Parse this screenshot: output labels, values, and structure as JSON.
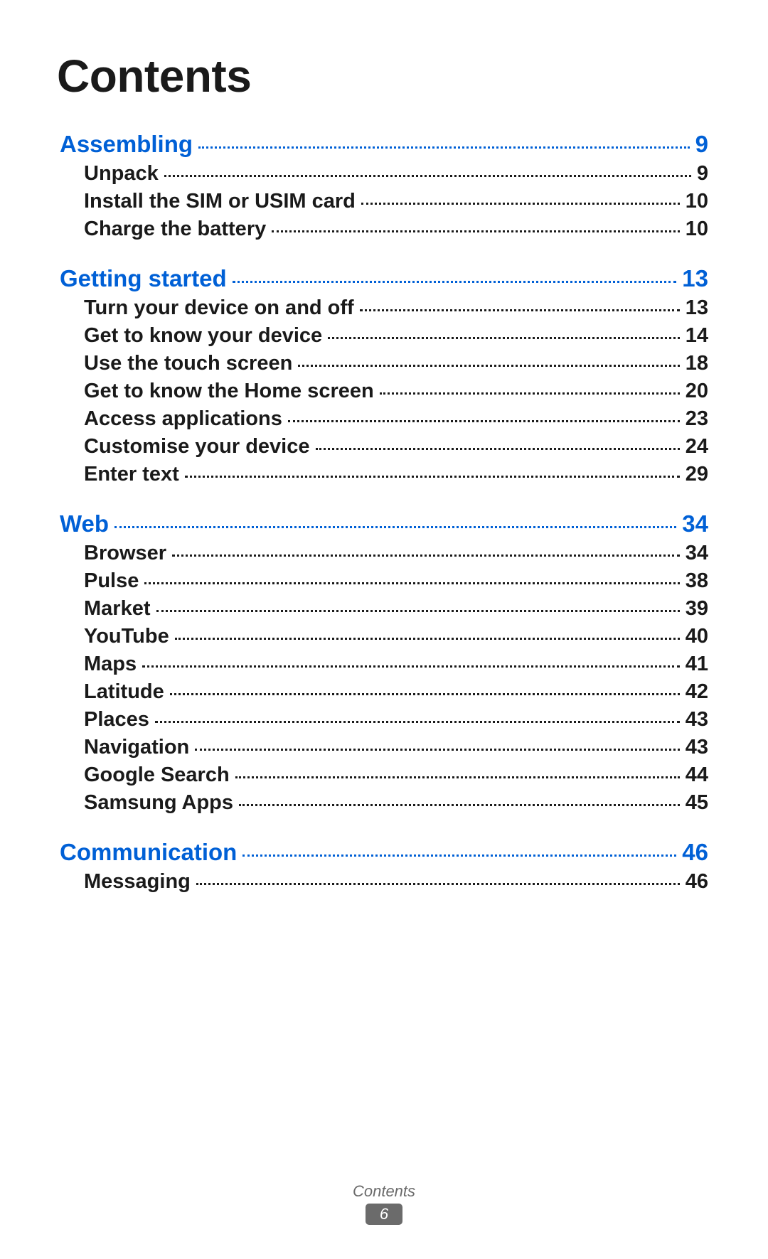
{
  "colors": {
    "section": "#0060d6",
    "item": "#1a1a1a",
    "footer_text": "#6a6a6a",
    "badge_bg": "#6b6b6b",
    "badge_text": "#ffffff",
    "background": "#ffffff"
  },
  "typography": {
    "title_fontsize": 64,
    "section_fontsize": 33,
    "item_fontsize": 29,
    "footer_fontsize": 22,
    "font_family": "Myriad Pro / Segoe UI / Helvetica Neue"
  },
  "title": "Contents",
  "footer": {
    "label": "Contents",
    "page_number": "6"
  },
  "sections": [
    {
      "label": "Assembling",
      "page": "9",
      "items": [
        {
          "label": "Unpack",
          "page": "9"
        },
        {
          "label": "Install the SIM or USIM card",
          "page": "10"
        },
        {
          "label": "Charge the battery",
          "page": "10"
        }
      ]
    },
    {
      "label": "Getting started",
      "page": "13",
      "items": [
        {
          "label": "Turn your device on and off",
          "page": "13"
        },
        {
          "label": "Get to know your device",
          "page": "14"
        },
        {
          "label": "Use the touch screen",
          "page": "18"
        },
        {
          "label": "Get to know the Home screen",
          "page": "20"
        },
        {
          "label": "Access applications",
          "page": "23"
        },
        {
          "label": "Customise your device",
          "page": "24"
        },
        {
          "label": "Enter text",
          "page": "29"
        }
      ]
    },
    {
      "label": "Web",
      "page": "34",
      "items": [
        {
          "label": "Browser",
          "page": "34"
        },
        {
          "label": "Pulse",
          "page": "38"
        },
        {
          "label": "Market",
          "page": "39"
        },
        {
          "label": "YouTube",
          "page": "40"
        },
        {
          "label": "Maps",
          "page": "41"
        },
        {
          "label": "Latitude",
          "page": "42"
        },
        {
          "label": "Places",
          "page": "43"
        },
        {
          "label": "Navigation",
          "page": "43"
        },
        {
          "label": "Google Search",
          "page": "44"
        },
        {
          "label": "Samsung Apps",
          "page": "45"
        }
      ]
    },
    {
      "label": "Communication",
      "page": "46",
      "items": [
        {
          "label": "Messaging",
          "page": "46"
        }
      ]
    }
  ]
}
